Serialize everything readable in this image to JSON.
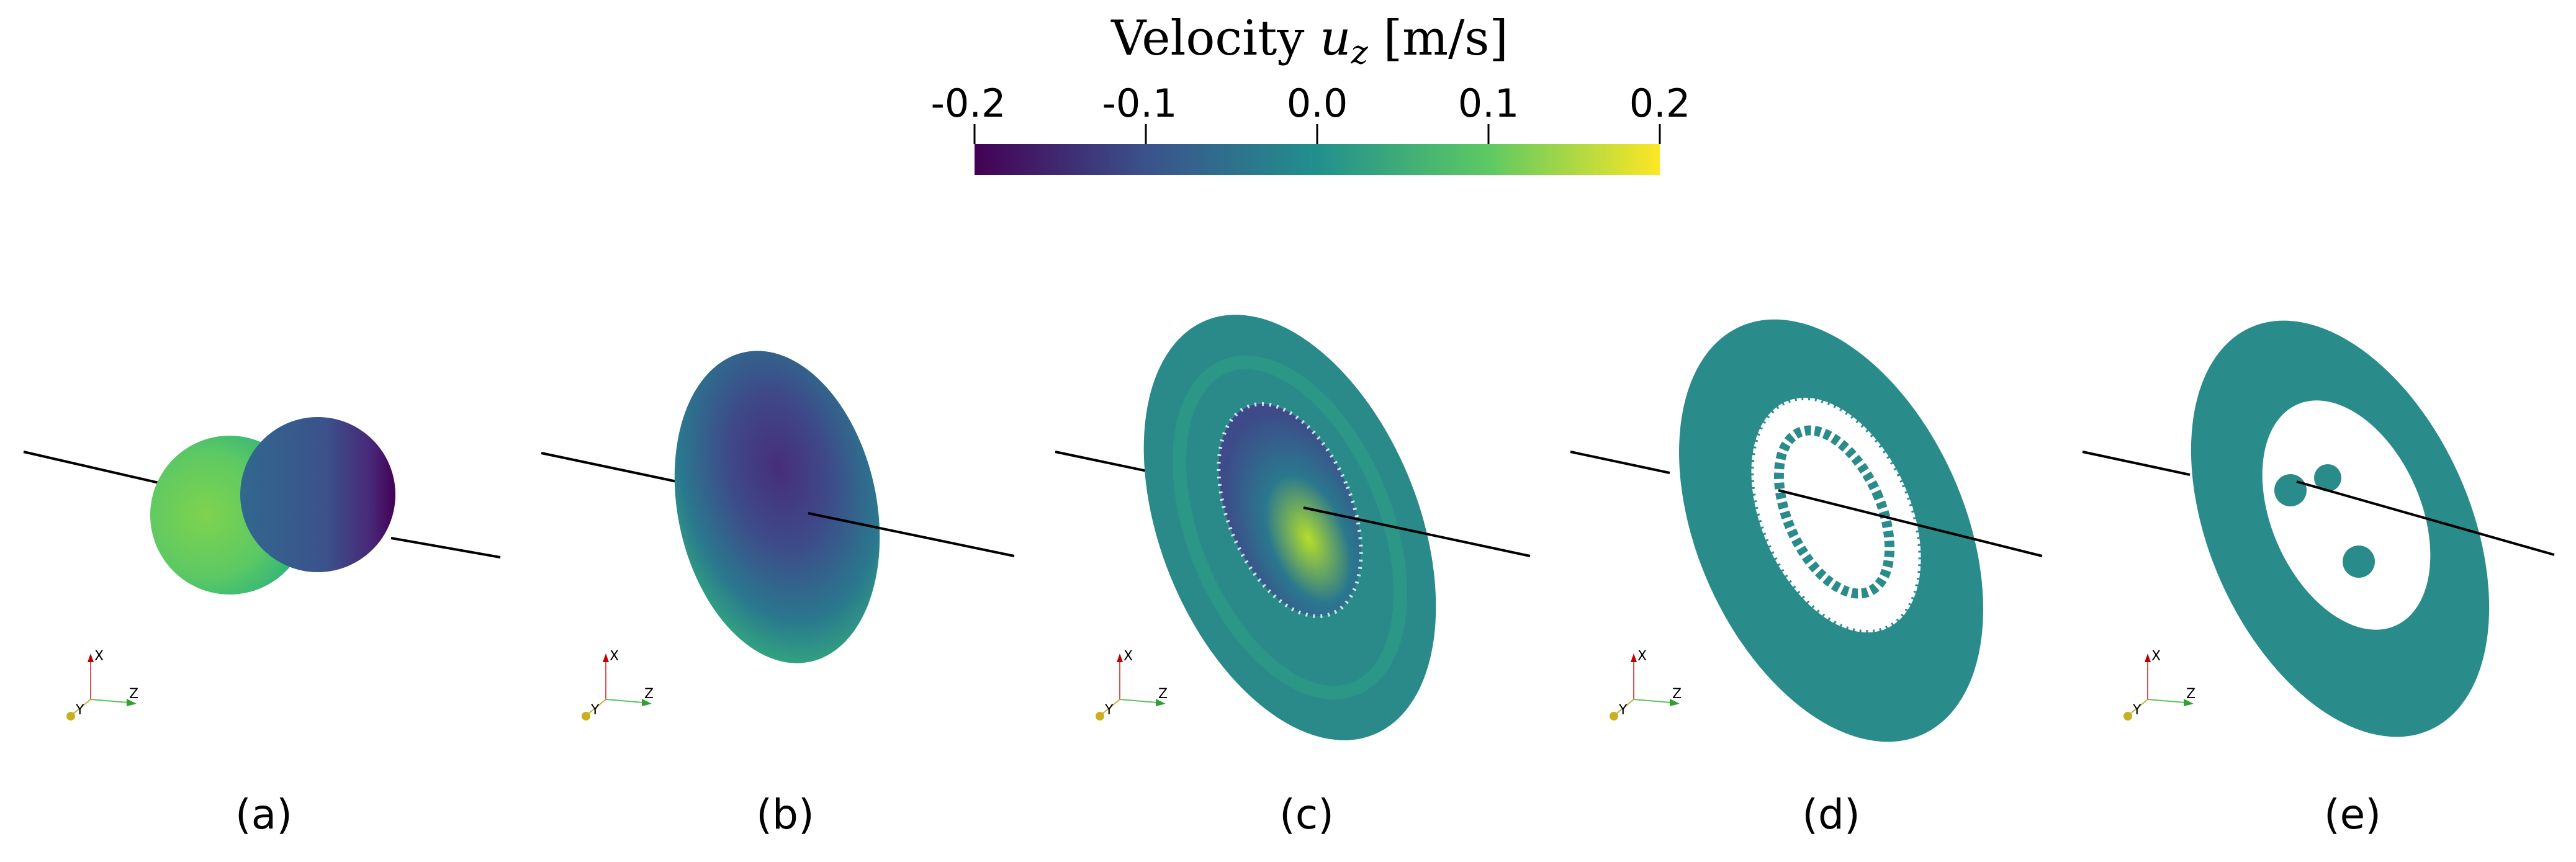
{
  "colorbar": {
    "title_prefix": "Velocity ",
    "title_var": "u",
    "title_sub": "z",
    "title_units": " [m/s]",
    "ticks": [
      "-0.2",
      "-0.1",
      "0.0",
      "0.1",
      "0.2"
    ],
    "range": [
      -0.2,
      0.2
    ],
    "colors": [
      "#440154",
      "#3b528b",
      "#21908d",
      "#5dc963",
      "#fde725"
    ]
  },
  "axes_triad": {
    "x": "X",
    "y": "Y",
    "z": "Z"
  },
  "panels": [
    {
      "label": "(a)"
    },
    {
      "label": "(b)"
    },
    {
      "label": "(c)"
    },
    {
      "label": "(d)"
    },
    {
      "label": "(e)"
    }
  ]
}
